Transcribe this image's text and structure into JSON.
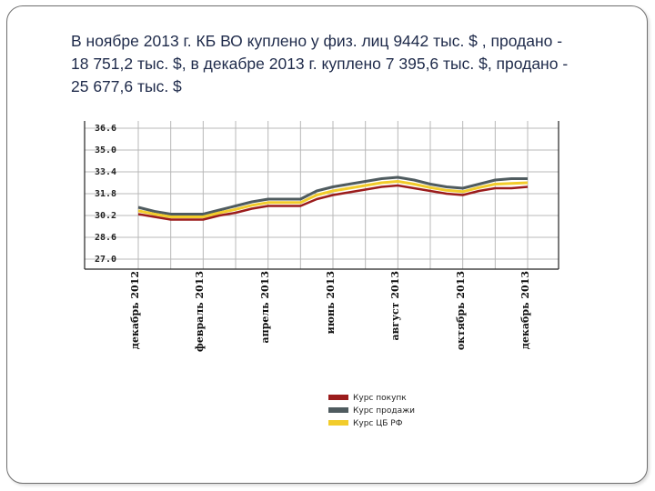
{
  "slide": {
    "text_lines": [
      "В ноябре 2013 г. КБ ВО  куплено у физ. лиц 9442 тыс. $ , продано -",
      "18 751,2 тыс. $, в декабре 2013 г. куплено 7 395,6 тыс. $, продано -",
      "25 677,6  тыс. $"
    ]
  },
  "colors": {
    "buy": "#9b1c1c",
    "sell": "#4f5b5f",
    "cb": "#f2cc2b",
    "grid": "#b8b8b8",
    "frame": "#6f6f6f"
  },
  "chart_data": {
    "type": "line",
    "y_ticks": [
      "36.6",
      "35.0",
      "33.4",
      "31.8",
      "30.2",
      "28.6",
      "27.0"
    ],
    "ylim": [
      27.0,
      36.6
    ],
    "x_labels": [
      "декабрь 2012",
      "февраль 2013",
      "апрель 2013",
      "июнь 2013",
      "август 2013",
      "октябрь 2013",
      "декабрь 2013"
    ],
    "x": [
      0,
      0.5,
      1,
      1.5,
      2,
      2.5,
      3,
      3.5,
      4,
      4.5,
      5,
      5.5,
      6,
      6.5,
      7,
      7.5,
      8,
      8.5,
      9,
      9.5,
      10,
      10.5,
      11,
      11.5,
      12
    ],
    "series": [
      {
        "name": "Курс покупки",
        "values": [
          30.3,
          30.1,
          29.9,
          29.9,
          29.9,
          30.2,
          30.4,
          30.7,
          30.9,
          30.9,
          30.9,
          31.4,
          31.7,
          31.9,
          32.1,
          32.3,
          32.4,
          32.2,
          32.0,
          31.8,
          31.7,
          32.0,
          32.2,
          32.2,
          32.3
        ]
      },
      {
        "name": "Курс продажи",
        "values": [
          30.8,
          30.5,
          30.3,
          30.3,
          30.3,
          30.6,
          30.9,
          31.2,
          31.4,
          31.4,
          31.4,
          32.0,
          32.3,
          32.5,
          32.7,
          32.9,
          33.0,
          32.8,
          32.5,
          32.3,
          32.2,
          32.5,
          32.8,
          32.9,
          32.9
        ]
      },
      {
        "name": "Курс ЦБ РФ",
        "values": [
          30.55,
          30.3,
          30.1,
          30.1,
          30.1,
          30.4,
          30.65,
          30.95,
          31.15,
          31.15,
          31.15,
          31.7,
          32.0,
          32.2,
          32.4,
          32.6,
          32.7,
          32.5,
          32.25,
          32.05,
          31.95,
          32.25,
          32.5,
          32.55,
          32.6
        ]
      }
    ],
    "legend": [
      "Курс покупк",
      "Курс продажи",
      "Курс ЦБ РФ"
    ],
    "legend_position": "bottom",
    "grid": true
  }
}
